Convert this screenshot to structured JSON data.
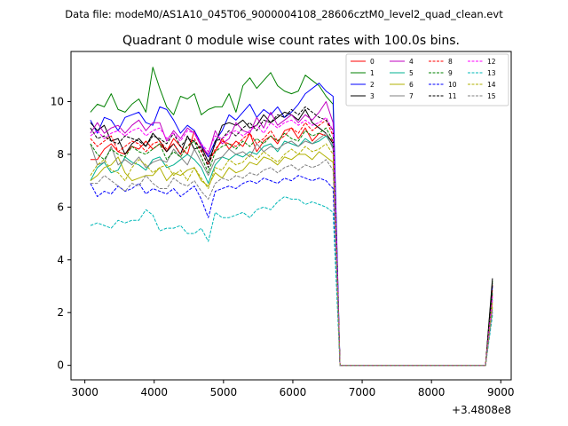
{
  "chart_data": {
    "type": "line",
    "suptitle": "Data file: modeM0/AS1A10_045T06_9000004108_28606cztM0_level2_quad_clean.evt",
    "title": "Quadrant 0 module wise count rates with 100.0s bins.",
    "xlabel": "",
    "ylabel": "",
    "x_offset_label": "+3.4808e8",
    "xlim": [
      2800,
      9150
    ],
    "ylim": [
      -0.55,
      11.9
    ],
    "x_ticks": [
      3000,
      4000,
      5000,
      6000,
      7000,
      8000,
      9000
    ],
    "x_tick_labels": [
      "3000",
      "4000",
      "5000",
      "6000",
      "7000",
      "8000",
      "9000"
    ],
    "y_ticks": [
      0,
      2,
      4,
      6,
      8,
      10
    ],
    "y_tick_labels": [
      "0",
      "2",
      "4",
      "6",
      "8",
      "10"
    ],
    "legend_location": "upper right",
    "x_start": 3080,
    "x_step": 100,
    "note": "Each series: 36 bins from 3080 to 6580, then 6680, a flat zero stretch to 8780, and a final bin at 8880.",
    "series": [
      {
        "name": "0",
        "color": "#ff0000",
        "dash": "solid",
        "values": [
          7.8,
          7.8,
          8.2,
          8.4,
          8.1,
          8.0,
          8.3,
          8.2,
          8.5,
          8.2,
          8.4,
          8.1,
          8.6,
          8.3,
          8.0,
          8.9,
          8.3,
          7.9,
          8.1,
          8.6,
          8.2,
          8.5,
          8.3,
          8.8,
          8.1,
          8.5,
          8.7,
          8.4,
          8.9,
          9.0,
          8.6,
          9.0,
          8.5,
          8.8,
          8.7,
          8.5
        ],
        "tail": [
          0.05,
          3.05
        ]
      },
      {
        "name": "1",
        "color": "#008000",
        "dash": "solid",
        "values": [
          9.6,
          9.9,
          9.8,
          10.3,
          9.7,
          9.6,
          9.9,
          10.1,
          9.6,
          11.3,
          10.5,
          9.8,
          9.5,
          10.2,
          10.1,
          10.3,
          9.5,
          9.7,
          9.8,
          9.8,
          10.3,
          9.6,
          10.6,
          10.9,
          10.5,
          10.8,
          11.1,
          10.6,
          10.4,
          10.3,
          10.4,
          11.0,
          10.8,
          10.6,
          10.2,
          9.9
        ],
        "tail": [
          0.05,
          3.2
        ]
      },
      {
        "name": "2",
        "color": "#0000ff",
        "dash": "solid",
        "values": [
          9.3,
          8.8,
          9.4,
          9.3,
          8.9,
          9.4,
          9.5,
          9.6,
          9.2,
          9.1,
          9.8,
          9.7,
          9.3,
          8.8,
          9.1,
          8.9,
          8.4,
          7.9,
          8.5,
          8.9,
          9.5,
          9.3,
          9.6,
          9.9,
          9.4,
          9.7,
          9.5,
          9.8,
          9.4,
          9.6,
          9.9,
          10.3,
          10.5,
          10.7,
          10.4,
          10.2
        ],
        "tail": [
          0.05,
          3.0
        ]
      },
      {
        "name": "3",
        "color": "#000000",
        "dash": "solid",
        "values": [
          9.2,
          8.9,
          9.1,
          8.5,
          8.6,
          8.0,
          8.4,
          8.6,
          8.3,
          8.8,
          8.5,
          8.1,
          8.4,
          8.0,
          8.7,
          8.2,
          8.3,
          7.7,
          8.4,
          9.1,
          9.2,
          9.1,
          9.3,
          9.0,
          9.1,
          9.5,
          9.2,
          9.4,
          9.6,
          9.5,
          9.3,
          9.7,
          9.2,
          9.0,
          8.8,
          8.4
        ],
        "tail": [
          0.05,
          3.3
        ]
      },
      {
        "name": "4",
        "color": "#c000c0",
        "dash": "solid",
        "values": [
          8.8,
          9.2,
          8.8,
          9.0,
          9.1,
          8.8,
          9.1,
          9.3,
          8.9,
          9.2,
          9.2,
          8.5,
          8.9,
          8.6,
          9.0,
          8.8,
          8.3,
          8.0,
          8.9,
          8.4,
          8.6,
          9.2,
          8.9,
          8.8,
          9.4,
          9.0,
          9.6,
          9.1,
          9.3,
          9.5,
          9.2,
          9.5,
          9.3,
          9.6,
          10.0,
          9.2
        ],
        "tail": [
          0.05,
          2.7
        ]
      },
      {
        "name": "5",
        "color": "#00b090",
        "dash": "solid",
        "values": [
          7.0,
          7.5,
          7.7,
          7.3,
          7.4,
          7.9,
          7.7,
          7.6,
          7.4,
          7.8,
          7.9,
          7.5,
          7.6,
          7.8,
          8.0,
          7.8,
          7.5,
          6.9,
          7.6,
          7.9,
          7.8,
          8.0,
          7.9,
          8.1,
          8.0,
          8.3,
          8.4,
          8.1,
          8.5,
          8.4,
          8.3,
          8.6,
          8.4,
          8.5,
          8.7,
          8.3
        ],
        "tail": [
          0.05,
          2.5
        ]
      },
      {
        "name": "6",
        "color": "#b0b000",
        "dash": "solid",
        "values": [
          7.0,
          7.2,
          7.5,
          7.6,
          7.9,
          7.3,
          7.0,
          7.1,
          7.2,
          7.2,
          7.5,
          7.0,
          7.3,
          7.2,
          7.4,
          7.5,
          7.0,
          6.8,
          7.3,
          7.1,
          7.5,
          7.3,
          7.4,
          7.7,
          7.6,
          7.9,
          7.8,
          7.6,
          7.9,
          7.8,
          8.0,
          8.0,
          7.8,
          8.1,
          7.9,
          7.7
        ],
        "tail": [
          0.05,
          2.4
        ]
      },
      {
        "name": "7",
        "color": "#808080",
        "dash": "solid",
        "values": [
          8.4,
          7.6,
          7.7,
          8.3,
          7.6,
          7.8,
          7.6,
          7.9,
          7.5,
          7.7,
          7.8,
          7.7,
          8.2,
          7.9,
          7.6,
          8.2,
          7.7,
          7.2,
          7.8,
          7.9,
          8.2,
          8.0,
          8.1,
          7.9,
          8.4,
          8.1,
          8.3,
          8.2,
          8.4,
          8.5,
          8.3,
          8.5,
          8.4,
          8.6,
          8.8,
          8.2
        ],
        "tail": [
          0.05,
          2.2
        ]
      },
      {
        "name": "8",
        "color": "#ff0000",
        "dash": "dashed",
        "values": [
          8.6,
          8.3,
          8.5,
          8.7,
          8.1,
          8.3,
          8.5,
          8.4,
          8.1,
          8.4,
          8.5,
          8.2,
          8.4,
          8.0,
          8.3,
          8.6,
          8.1,
          7.6,
          8.2,
          8.5,
          8.4,
          8.3,
          8.6,
          8.8,
          8.4,
          8.6,
          8.9,
          8.5,
          8.7,
          9.0,
          8.8,
          9.2,
          8.9,
          9.1,
          9.3,
          8.7
        ],
        "tail": [
          0.05,
          2.9
        ]
      },
      {
        "name": "9",
        "color": "#008000",
        "dash": "dashed",
        "values": [
          8.4,
          8.0,
          7.8,
          8.2,
          8.0,
          7.9,
          8.3,
          8.1,
          8.0,
          8.2,
          8.4,
          7.8,
          8.1,
          7.9,
          8.3,
          8.5,
          7.9,
          7.3,
          8.1,
          8.3,
          8.4,
          8.2,
          8.5,
          8.3,
          8.6,
          8.4,
          8.7,
          8.5,
          8.8,
          8.6,
          8.5,
          8.9,
          8.7,
          8.8,
          9.0,
          8.5
        ],
        "tail": [
          0.05,
          2.8
        ]
      },
      {
        "name": "10",
        "color": "#0000ff",
        "dash": "dashed",
        "values": [
          6.9,
          6.4,
          6.6,
          6.5,
          6.8,
          6.6,
          6.7,
          6.9,
          6.5,
          6.7,
          6.6,
          6.5,
          6.7,
          6.4,
          6.6,
          6.8,
          6.3,
          5.6,
          6.6,
          6.7,
          6.8,
          6.7,
          6.9,
          7.0,
          6.9,
          7.1,
          7.0,
          6.9,
          7.1,
          7.0,
          7.2,
          7.1,
          7.0,
          7.1,
          7.0,
          6.7
        ],
        "tail": [
          0.05,
          2.0
        ]
      },
      {
        "name": "11",
        "color": "#000000",
        "dash": "dashed",
        "values": [
          9.0,
          8.6,
          8.7,
          8.5,
          8.4,
          8.7,
          8.6,
          8.5,
          8.3,
          8.7,
          8.6,
          8.4,
          8.8,
          8.3,
          8.6,
          8.5,
          8.2,
          7.5,
          8.5,
          8.6,
          8.9,
          8.7,
          9.0,
          9.2,
          8.9,
          9.3,
          9.2,
          9.5,
          9.4,
          9.7,
          9.5,
          9.8,
          9.6,
          9.4,
          9.3,
          8.9
        ],
        "tail": [
          0.05,
          3.1
        ]
      },
      {
        "name": "12",
        "color": "#ff00ff",
        "dash": "dashed",
        "values": [
          8.7,
          8.9,
          8.6,
          8.8,
          8.9,
          8.7,
          8.9,
          9.0,
          8.7,
          8.9,
          9.0,
          8.6,
          8.8,
          8.5,
          8.9,
          8.8,
          8.4,
          8.1,
          8.7,
          8.6,
          8.8,
          8.9,
          8.7,
          8.9,
          9.1,
          8.8,
          9.2,
          9.0,
          9.2,
          9.3,
          9.1,
          9.3,
          9.1,
          9.2,
          9.4,
          8.9
        ],
        "tail": [
          0.05,
          2.6
        ]
      },
      {
        "name": "13",
        "color": "#00b8b8",
        "dash": "dashed",
        "values": [
          5.3,
          5.4,
          5.3,
          5.2,
          5.5,
          5.4,
          5.5,
          5.5,
          5.9,
          5.7,
          5.1,
          5.2,
          5.2,
          5.3,
          5.0,
          5.0,
          5.2,
          4.7,
          5.8,
          5.6,
          5.6,
          5.7,
          5.8,
          5.6,
          5.9,
          6.0,
          5.9,
          6.2,
          6.4,
          6.3,
          6.3,
          6.1,
          6.2,
          6.1,
          6.0,
          5.8
        ],
        "tail": [
          0.05,
          1.9
        ]
      },
      {
        "name": "14",
        "color": "#b0b000",
        "dash": "dashed",
        "values": [
          7.2,
          7.6,
          7.8,
          7.4,
          7.3,
          7.0,
          7.5,
          7.8,
          7.6,
          7.3,
          7.5,
          7.6,
          7.2,
          7.4,
          7.0,
          7.5,
          7.1,
          6.7,
          7.5,
          7.4,
          7.8,
          7.6,
          7.7,
          8.0,
          7.8,
          8.1,
          7.9,
          7.7,
          8.0,
          8.2,
          8.0,
          8.3,
          8.1,
          8.2,
          8.4,
          8.0
        ],
        "tail": [
          0.05,
          2.3
        ]
      },
      {
        "name": "15",
        "color": "#808080",
        "dash": "dashed",
        "values": [
          6.9,
          6.9,
          7.2,
          7.0,
          6.8,
          6.6,
          6.9,
          6.8,
          7.2,
          6.9,
          6.7,
          6.7,
          7.1,
          6.9,
          6.8,
          7.0,
          6.6,
          6.3,
          6.9,
          7.1,
          7.0,
          7.2,
          7.1,
          7.3,
          7.2,
          7.4,
          7.5,
          7.3,
          7.5,
          7.6,
          7.4,
          7.6,
          7.5,
          7.6,
          7.8,
          7.4
        ],
        "tail": [
          0.05,
          2.1
        ]
      }
    ]
  }
}
